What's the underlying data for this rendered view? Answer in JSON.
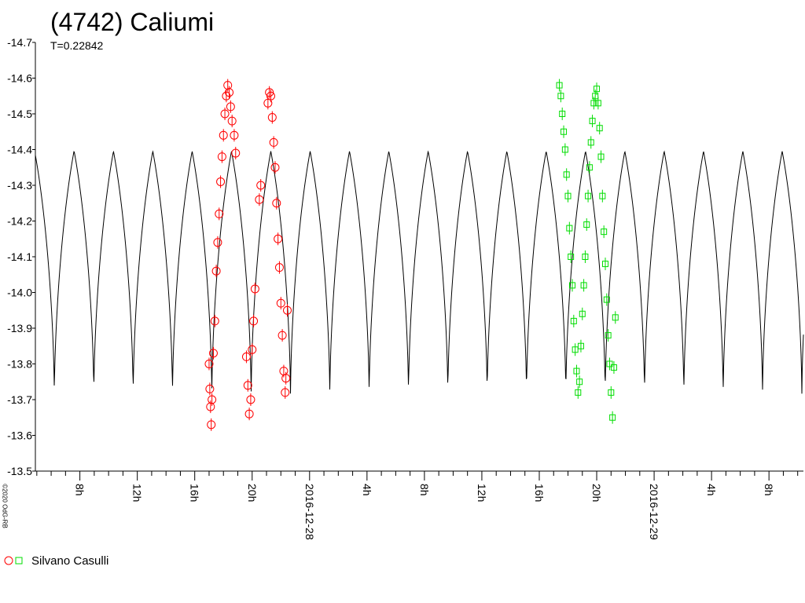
{
  "header": {
    "title": "(4742) Caliumi",
    "subtitle": "T=0.22842",
    "credit": "©2020 OdG-RB"
  },
  "legend": {
    "observer": "Silvano Casulli"
  },
  "colors": {
    "model": "#000000",
    "session_1": "#ff0000",
    "session_2": "#00dd00"
  },
  "chart_data": {
    "type": "line",
    "title": "(4742) Caliumi",
    "subtitle": "T=0.22842",
    "ylabel": "",
    "xlabel": "",
    "y_inverted": true,
    "ylim": [
      -13.5,
      -14.7
    ],
    "yticks": [
      -14.7,
      -14.6,
      -14.5,
      -14.4,
      -14.3,
      -14.2,
      -14.1,
      -14.0,
      -13.9,
      -13.8,
      -13.7,
      -13.6,
      -13.5
    ],
    "x_unit": "hours from 2016-12-27 00:00 UT",
    "xlim": [
      4.9,
      58.4
    ],
    "x_ticks": [
      {
        "x": 8,
        "label": "8h"
      },
      {
        "x": 12,
        "label": "12h"
      },
      {
        "x": 16,
        "label": "16h"
      },
      {
        "x": 20,
        "label": "20h"
      },
      {
        "x": 24,
        "label": "2016-12-28"
      },
      {
        "x": 28,
        "label": "4h"
      },
      {
        "x": 32,
        "label": "8h"
      },
      {
        "x": 36,
        "label": "12h"
      },
      {
        "x": 40,
        "label": "16h"
      },
      {
        "x": 44,
        "label": "20h"
      },
      {
        "x": 48,
        "label": "2016-12-29"
      },
      {
        "x": 52,
        "label": "4h"
      },
      {
        "x": 56,
        "label": "8h"
      }
    ],
    "period_h": 5.48208,
    "model": {
      "name": "model lightcurve",
      "peak_mag": -14.55,
      "min_mag": -13.71,
      "min_times_h": [
        6.22,
        8.97,
        11.71,
        14.45,
        17.19,
        19.93,
        22.67,
        25.41,
        28.15,
        30.89,
        33.63,
        36.37,
        39.11,
        41.85,
        44.59,
        47.33,
        50.07,
        52.81,
        55.55,
        58.29
      ]
    },
    "series": [
      {
        "name": "Silvano Casulli",
        "session": "2016-12-27",
        "marker": "circle",
        "color": "#ff0000",
        "points": [
          {
            "x": 17.0,
            "y": -13.8
          },
          {
            "x": 17.05,
            "y": -13.73
          },
          {
            "x": 17.1,
            "y": -13.68
          },
          {
            "x": 17.15,
            "y": -13.63
          },
          {
            "x": 17.2,
            "y": -13.7
          },
          {
            "x": 17.3,
            "y": -13.83
          },
          {
            "x": 17.4,
            "y": -13.92
          },
          {
            "x": 17.5,
            "y": -14.06
          },
          {
            "x": 17.6,
            "y": -14.14
          },
          {
            "x": 17.7,
            "y": -14.22
          },
          {
            "x": 17.8,
            "y": -14.31
          },
          {
            "x": 17.9,
            "y": -14.38
          },
          {
            "x": 18.0,
            "y": -14.44
          },
          {
            "x": 18.1,
            "y": -14.5
          },
          {
            "x": 18.2,
            "y": -14.55
          },
          {
            "x": 18.3,
            "y": -14.58
          },
          {
            "x": 18.4,
            "y": -14.56
          },
          {
            "x": 18.5,
            "y": -14.52
          },
          {
            "x": 18.6,
            "y": -14.48
          },
          {
            "x": 18.75,
            "y": -14.44
          },
          {
            "x": 18.85,
            "y": -14.39
          },
          {
            "x": 19.6,
            "y": -13.82
          },
          {
            "x": 19.7,
            "y": -13.74
          },
          {
            "x": 19.8,
            "y": -13.66
          },
          {
            "x": 19.9,
            "y": -13.7
          },
          {
            "x": 20.0,
            "y": -13.84
          },
          {
            "x": 20.1,
            "y": -13.92
          },
          {
            "x": 20.2,
            "y": -14.01
          },
          {
            "x": 20.5,
            "y": -14.26
          },
          {
            "x": 20.6,
            "y": -14.3
          },
          {
            "x": 21.1,
            "y": -14.53
          },
          {
            "x": 21.2,
            "y": -14.56
          },
          {
            "x": 21.3,
            "y": -14.55
          },
          {
            "x": 21.4,
            "y": -14.49
          },
          {
            "x": 21.5,
            "y": -14.42
          },
          {
            "x": 21.6,
            "y": -14.35
          },
          {
            "x": 21.7,
            "y": -14.25
          },
          {
            "x": 21.8,
            "y": -14.15
          },
          {
            "x": 21.9,
            "y": -14.07
          },
          {
            "x": 22.0,
            "y": -13.97
          },
          {
            "x": 22.1,
            "y": -13.88
          },
          {
            "x": 22.2,
            "y": -13.78
          },
          {
            "x": 22.3,
            "y": -13.72
          },
          {
            "x": 22.35,
            "y": -13.76
          },
          {
            "x": 22.45,
            "y": -13.95
          }
        ]
      },
      {
        "name": "Silvano Casulli",
        "session": "2016-12-28",
        "marker": "square",
        "color": "#00dd00",
        "points": [
          {
            "x": 41.4,
            "y": -14.58
          },
          {
            "x": 41.5,
            "y": -14.55
          },
          {
            "x": 41.6,
            "y": -14.5
          },
          {
            "x": 41.7,
            "y": -14.45
          },
          {
            "x": 41.8,
            "y": -14.4
          },
          {
            "x": 41.9,
            "y": -14.33
          },
          {
            "x": 42.0,
            "y": -14.27
          },
          {
            "x": 42.1,
            "y": -14.18
          },
          {
            "x": 42.2,
            "y": -14.1
          },
          {
            "x": 42.3,
            "y": -14.02
          },
          {
            "x": 42.4,
            "y": -13.92
          },
          {
            "x": 42.5,
            "y": -13.84
          },
          {
            "x": 42.6,
            "y": -13.78
          },
          {
            "x": 42.7,
            "y": -13.72
          },
          {
            "x": 42.8,
            "y": -13.75
          },
          {
            "x": 42.9,
            "y": -13.85
          },
          {
            "x": 43.0,
            "y": -13.94
          },
          {
            "x": 43.1,
            "y": -14.02
          },
          {
            "x": 43.2,
            "y": -14.1
          },
          {
            "x": 43.3,
            "y": -14.19
          },
          {
            "x": 43.4,
            "y": -14.27
          },
          {
            "x": 43.5,
            "y": -14.35
          },
          {
            "x": 43.6,
            "y": -14.42
          },
          {
            "x": 43.7,
            "y": -14.48
          },
          {
            "x": 43.8,
            "y": -14.53
          },
          {
            "x": 43.9,
            "y": -14.55
          },
          {
            "x": 44.0,
            "y": -14.57
          },
          {
            "x": 44.1,
            "y": -14.53
          },
          {
            "x": 44.2,
            "y": -14.46
          },
          {
            "x": 44.3,
            "y": -14.38
          },
          {
            "x": 44.4,
            "y": -14.27
          },
          {
            "x": 44.5,
            "y": -14.17
          },
          {
            "x": 44.6,
            "y": -14.08
          },
          {
            "x": 44.7,
            "y": -13.98
          },
          {
            "x": 44.8,
            "y": -13.88
          },
          {
            "x": 44.9,
            "y": -13.8
          },
          {
            "x": 45.0,
            "y": -13.72
          },
          {
            "x": 45.1,
            "y": -13.65
          },
          {
            "x": 45.2,
            "y": -13.79
          },
          {
            "x": 45.3,
            "y": -13.93
          }
        ]
      }
    ]
  }
}
